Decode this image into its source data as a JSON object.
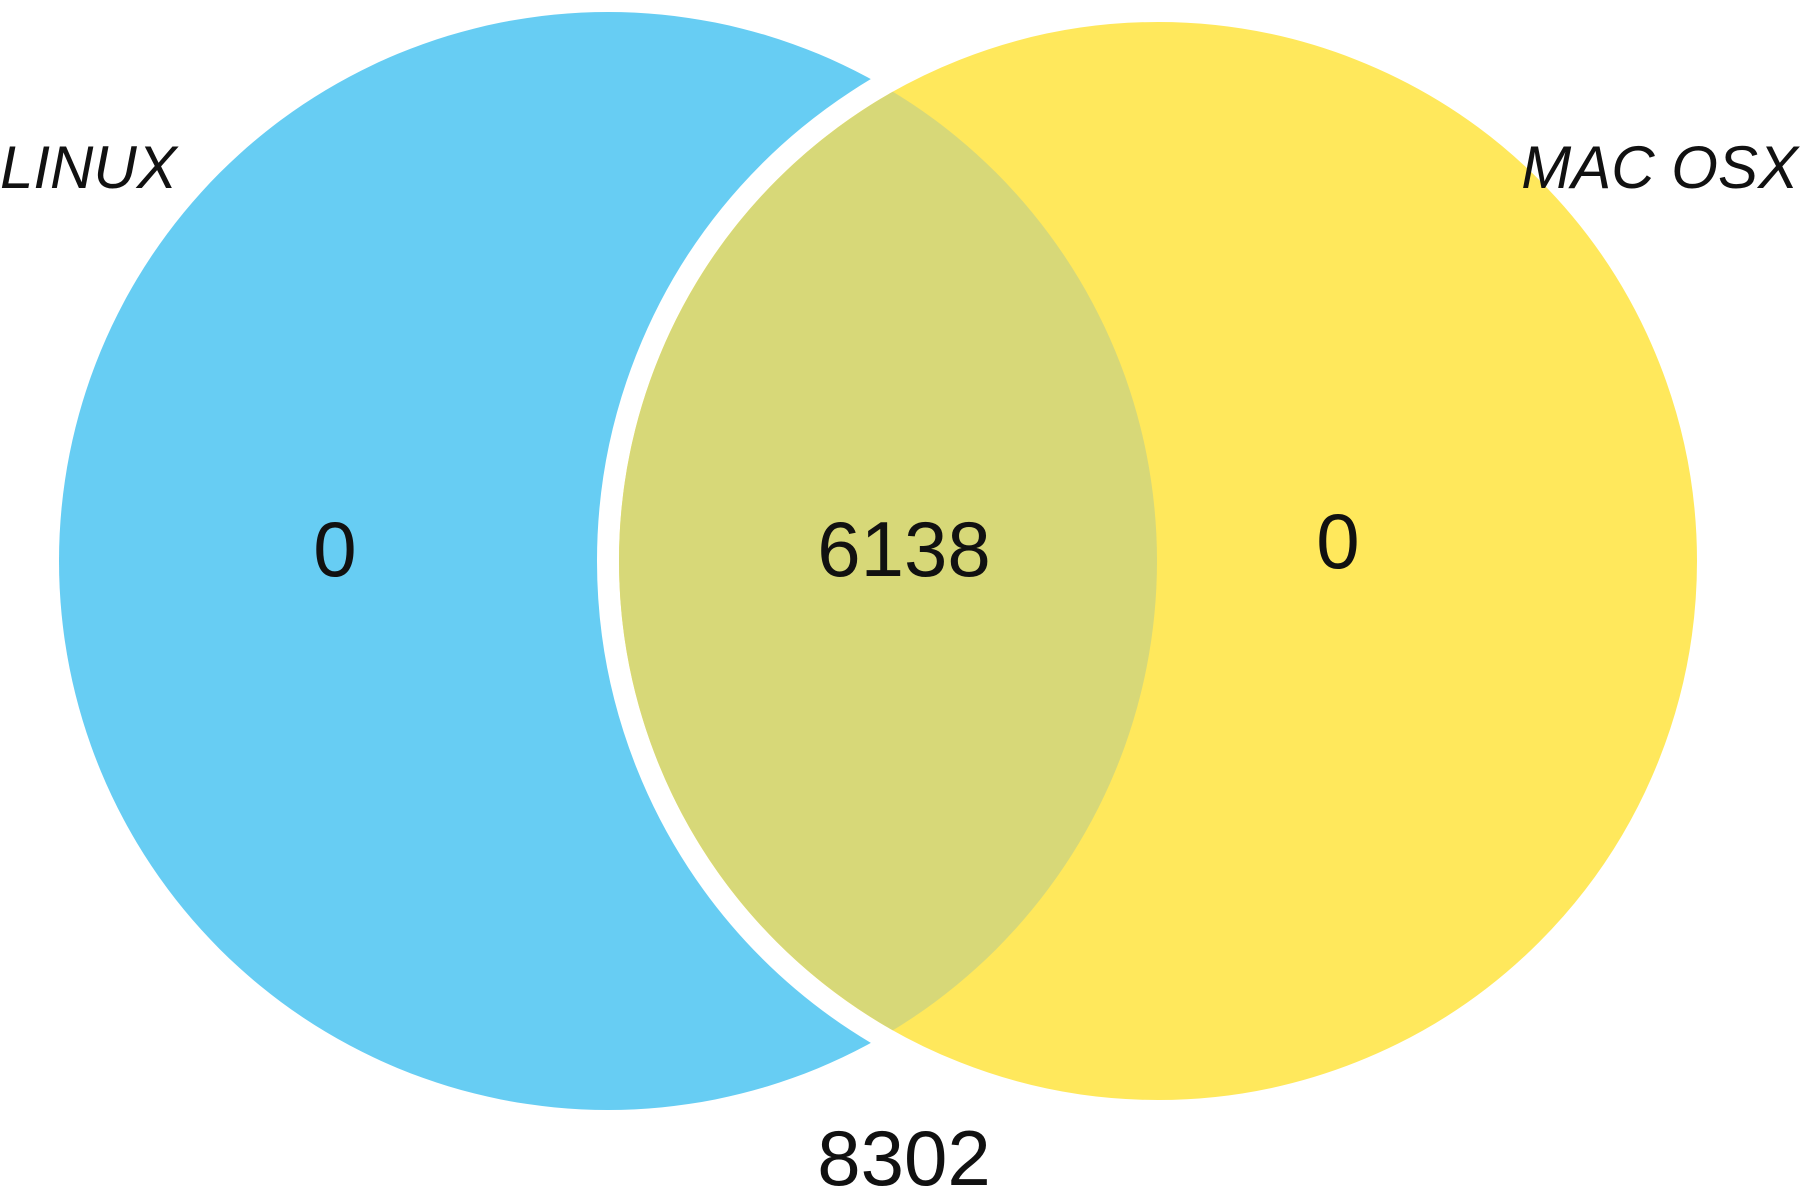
{
  "venn": {
    "sets": [
      {
        "label": "LINUX",
        "only_count": "0",
        "color": "#67cdf3"
      },
      {
        "label": "MAC OSX",
        "only_count": "0",
        "color": "#ffe85c"
      }
    ],
    "intersection": {
      "count": "6138",
      "color": "#d7d878"
    },
    "outside_count": "8302",
    "background": "#ffffff"
  }
}
